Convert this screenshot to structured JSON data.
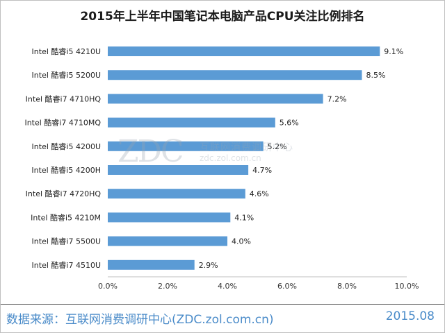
{
  "chart_data": {
    "type": "bar",
    "orientation": "horizontal",
    "title": "2015年上半年中国笔记本电脑产品CPU关注比例排名",
    "categories": [
      "Intel 酷睿i5 4210U",
      "Intel 酷睿i5 5200U",
      "Intel 酷睿i7 4710HQ",
      "Intel 酷睿i7 4710MQ",
      "Intel 酷睿i5 4200U",
      "Intel 酷睿i5 4200H",
      "Intel 酷睿i7 4720HQ",
      "Intel 酷睿i5 4210M",
      "Intel 酷睿i7 5500U",
      "Intel 酷睿i7 4510U"
    ],
    "values": [
      9.1,
      8.5,
      7.2,
      5.6,
      5.2,
      4.7,
      4.6,
      4.1,
      4.0,
      2.9
    ],
    "value_labels": [
      "9.1%",
      "8.5%",
      "7.2%",
      "5.6%",
      "5.2%",
      "4.7%",
      "4.6%",
      "4.1%",
      "4.0%",
      "2.9%"
    ],
    "xlim": [
      0,
      10
    ],
    "xticks": [
      0,
      2,
      4,
      6,
      8,
      10
    ],
    "xtick_labels": [
      "0.0%",
      "2.0%",
      "4.0%",
      "6.0%",
      "8.0%",
      "10.0%"
    ],
    "xlabel": "",
    "ylabel": "",
    "grid": false,
    "legend": "none",
    "bar_color": "#5b9bd5"
  },
  "watermark": {
    "logo": "ZDC",
    "text": "互联网消费调研中心",
    "url": "zdc.zol.com.cn"
  },
  "footer": {
    "source": "数据来源：互联网消费调研中心(ZDC.zol.com.cn)",
    "date": "2015.08",
    "text_color": "#4a8bc9"
  }
}
